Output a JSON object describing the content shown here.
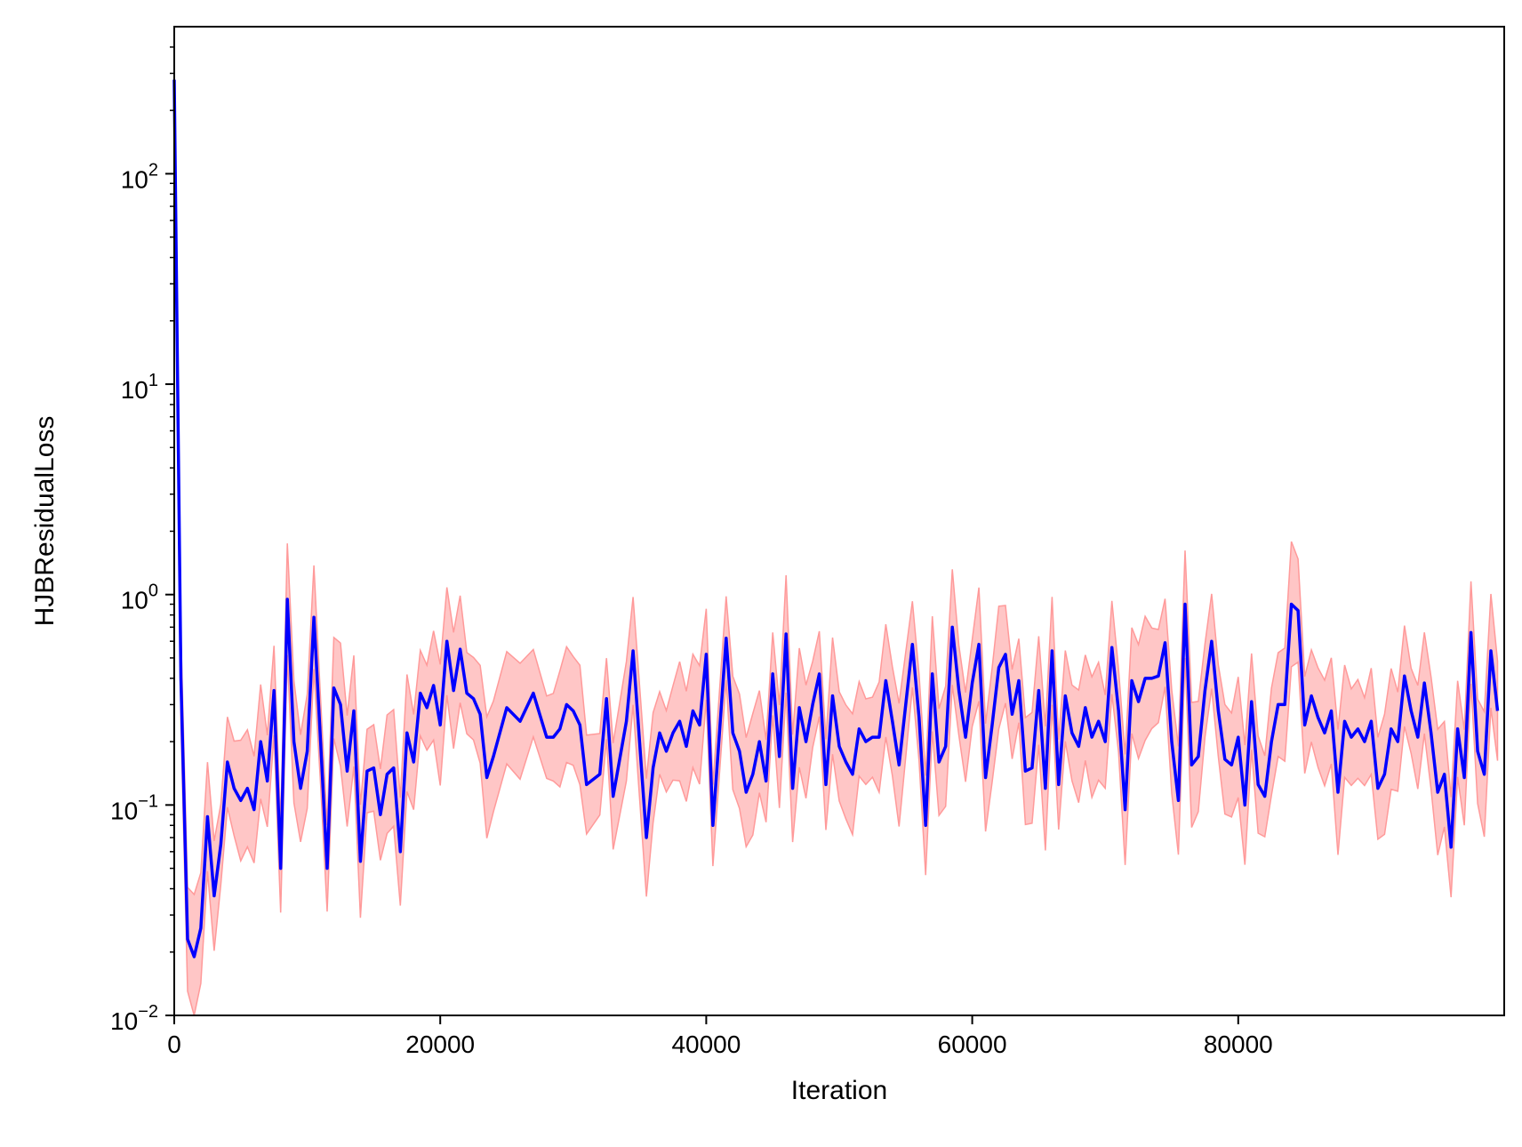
{
  "chart_data": {
    "type": "line",
    "title": "",
    "xlabel": "Iteration",
    "ylabel": "HJBResidualLoss",
    "xlim": [
      0,
      100000
    ],
    "ylim": [
      0.01,
      500
    ],
    "yscale": "log",
    "grid": false,
    "xticks": [
      0,
      20000,
      40000,
      60000,
      80000
    ],
    "xtick_labels": [
      "0",
      "20000",
      "40000",
      "60000",
      "80000"
    ],
    "yticks": [
      0.01,
      0.1,
      1,
      10,
      100
    ],
    "ytick_base": "10",
    "ytick_exponents": [
      "−2",
      "−1",
      "0",
      "1",
      "2"
    ],
    "colors": {
      "line": "#0000ff",
      "band_fill": "#ffb3b3",
      "band_edge": "#ff9a9a"
    },
    "series": [
      {
        "x": [
          0,
          500,
          1000,
          1500,
          2000,
          2500,
          3000,
          3500,
          4000,
          4500,
          5000,
          5500,
          6000,
          6500,
          7000,
          7500,
          8000,
          8500,
          9000,
          9500,
          10000,
          10500,
          11000,
          11500,
          12000,
          12500,
          13000,
          13500,
          14000,
          14500,
          15000,
          15500,
          16000,
          16500,
          17000,
          17500,
          18000,
          18500,
          19000,
          19500,
          20000,
          20500,
          21000,
          21500,
          22000,
          22500,
          23000,
          23500,
          24000,
          25000,
          26000,
          27000,
          28000,
          28500,
          29000,
          29500,
          30000,
          30500,
          31000,
          32000,
          32500,
          33000,
          34000,
          34500,
          35500,
          36000,
          36500,
          37000,
          37500,
          38000,
          38500,
          39000,
          39500,
          40000,
          40500,
          41500,
          42000,
          42500,
          43000,
          43500,
          44000,
          44500,
          45000,
          45500,
          46000,
          46500,
          47000,
          47500,
          48000,
          48500,
          49000,
          49500,
          50000,
          50500,
          51000,
          51500,
          52000,
          52500,
          53000,
          53500,
          54000,
          54500,
          55000,
          55500,
          56000,
          56500,
          57000,
          57500,
          58000,
          58500,
          59000,
          59500,
          60000,
          60500,
          61000,
          61500,
          62000,
          62500,
          63000,
          63500,
          64000,
          64500,
          65000,
          65500,
          66000,
          66500,
          67000,
          67500,
          68000,
          68500,
          69000,
          69500,
          70000,
          70500,
          71000,
          71500,
          72000,
          72500,
          73000,
          73500,
          74000,
          74500,
          75000,
          75500,
          76000,
          76500,
          77000,
          77500,
          78000,
          78500,
          79000,
          79500,
          80000,
          80500,
          81000,
          81500,
          82000,
          82500,
          83000,
          83500,
          84000,
          84500,
          85000,
          85500,
          86000,
          86500,
          87000,
          87500,
          88000,
          88500,
          89000,
          89500,
          90000,
          90500,
          91000,
          91500,
          92000,
          92500,
          93000,
          93500,
          94000,
          94500,
          95000,
          95500,
          96000,
          96500,
          97000,
          97500,
          98000,
          98500,
          99000,
          99500
        ],
        "y": [
          280,
          0.4,
          0.023,
          0.019,
          0.026,
          0.088,
          0.037,
          0.065,
          0.16,
          0.12,
          0.105,
          0.12,
          0.095,
          0.2,
          0.13,
          0.35,
          0.05,
          0.95,
          0.2,
          0.12,
          0.18,
          0.78,
          0.2,
          0.05,
          0.36,
          0.3,
          0.145,
          0.28,
          0.054,
          0.145,
          0.15,
          0.09,
          0.14,
          0.15,
          0.06,
          0.22,
          0.16,
          0.34,
          0.29,
          0.37,
          0.24,
          0.6,
          0.35,
          0.55,
          0.34,
          0.32,
          0.27,
          0.135,
          0.17,
          0.29,
          0.25,
          0.34,
          0.21,
          0.21,
          0.23,
          0.3,
          0.28,
          0.24,
          0.125,
          0.14,
          0.32,
          0.11,
          0.25,
          0.54,
          0.07,
          0.15,
          0.22,
          0.18,
          0.22,
          0.25,
          0.19,
          0.28,
          0.24,
          0.52,
          0.08,
          0.62,
          0.22,
          0.18,
          0.115,
          0.14,
          0.2,
          0.13,
          0.42,
          0.17,
          0.65,
          0.12,
          0.29,
          0.2,
          0.3,
          0.42,
          0.125,
          0.33,
          0.19,
          0.16,
          0.14,
          0.23,
          0.2,
          0.21,
          0.21,
          0.39,
          0.25,
          0.155,
          0.3,
          0.58,
          0.26,
          0.08,
          0.42,
          0.16,
          0.19,
          0.7,
          0.35,
          0.21,
          0.38,
          0.58,
          0.135,
          0.24,
          0.45,
          0.52,
          0.27,
          0.39,
          0.145,
          0.15,
          0.35,
          0.12,
          0.54,
          0.125,
          0.33,
          0.22,
          0.19,
          0.29,
          0.21,
          0.25,
          0.2,
          0.56,
          0.28,
          0.095,
          0.39,
          0.31,
          0.4,
          0.4,
          0.41,
          0.59,
          0.2,
          0.105,
          0.9,
          0.155,
          0.17,
          0.35,
          0.6,
          0.28,
          0.165,
          0.155,
          0.21,
          0.1,
          0.31,
          0.125,
          0.11,
          0.2,
          0.3,
          0.3,
          0.9,
          0.84,
          0.24,
          0.33,
          0.26,
          0.22,
          0.28,
          0.115,
          0.25,
          0.21,
          0.23,
          0.2,
          0.25,
          0.12,
          0.14,
          0.23,
          0.2,
          0.41,
          0.28,
          0.21,
          0.38,
          0.22,
          0.115,
          0.14,
          0.063,
          0.23,
          0.135,
          0.66,
          0.18,
          0.14,
          0.54,
          0.28
        ]
      }
    ]
  }
}
